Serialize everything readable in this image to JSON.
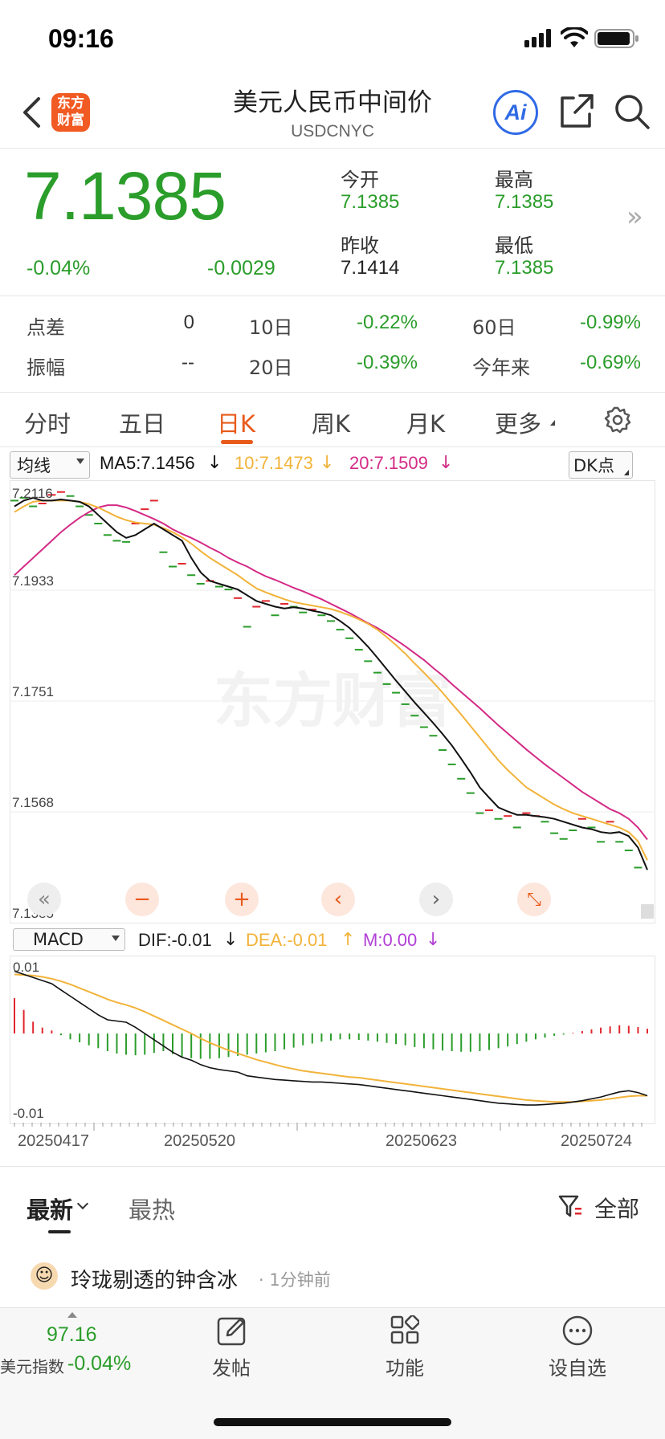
{
  "status_bar": {
    "time": "09:16"
  },
  "header": {
    "title": "美元人民币中间价",
    "subtitle": "USDCNYC",
    "logo_text_1": "东方",
    "logo_text_2": "财富",
    "ai_label": "Ai"
  },
  "quote": {
    "price": "7.1385",
    "change_pct": "-0.04%",
    "change_abs": "-0.0029",
    "open_label": "今开",
    "open_value": "7.1385",
    "high_label": "最高",
    "high_value": "7.1385",
    "prev_close_label": "昨收",
    "prev_close_value": "7.1414",
    "low_label": "最低",
    "low_value": "7.1385",
    "more_glyph": "»"
  },
  "stats": [
    {
      "label": "点差",
      "value": "0"
    },
    {
      "label": "10日",
      "value": "-0.22%"
    },
    {
      "label": "60日",
      "value": "-0.99%"
    },
    {
      "label": "振幅",
      "value": "--"
    },
    {
      "label": "20日",
      "value": "-0.39%"
    },
    {
      "label": "今年来",
      "value": "-0.69%"
    }
  ],
  "tabs": [
    "分时",
    "五日",
    "日K",
    "周K",
    "月K",
    "更多"
  ],
  "active_tab": "日K",
  "chart_toolbar": {
    "indicator_select": "均线",
    "ma5": "MA5:7.1456",
    "ma10": "10:7.1473",
    "ma20": "20:7.1509",
    "dk_button": "DK点",
    "macd_select": "MACD",
    "dif": "DIF:-0.01",
    "dea": "DEA:-0.01",
    "m": "M:0.00",
    "watermark": "东方财富"
  },
  "colors": {
    "up": "#e0262d",
    "down": "#2a9d2a",
    "ma5": "#111111",
    "ma10": "#f2b33a",
    "ma20": "#d42a86",
    "accent": "#e85a1a",
    "ai_blue": "#2f6ae6"
  },
  "chart_data": [
    {
      "type": "candlestick-line",
      "ylim": [
        7.1385,
        7.2116
      ],
      "y_ticks": [
        "7.2116",
        "7.1933",
        "7.1751",
        "7.1568",
        "7.1385"
      ],
      "x_ticks": [
        "20250417",
        "20250520",
        "20250623",
        "20250724"
      ],
      "candles": [
        [
          7.21,
          "d"
        ],
        [
          7.2105,
          "d"
        ],
        [
          7.209,
          "d"
        ],
        [
          7.2095,
          "u"
        ],
        [
          7.211,
          "u"
        ],
        [
          7.2115,
          "u"
        ],
        [
          7.2108,
          "d"
        ],
        [
          7.209,
          "d"
        ],
        [
          7.2075,
          "d"
        ],
        [
          7.206,
          "d"
        ],
        [
          7.204,
          "d"
        ],
        [
          7.203,
          "d"
        ],
        [
          7.2028,
          "d"
        ],
        [
          7.206,
          "u"
        ],
        [
          7.2085,
          "u"
        ],
        [
          7.21,
          "u"
        ],
        [
          7.201,
          "d"
        ],
        [
          7.1985,
          "d"
        ],
        [
          7.199,
          "u"
        ],
        [
          7.197,
          "d"
        ],
        [
          7.1955,
          "d"
        ],
        [
          7.196,
          "u"
        ],
        [
          7.195,
          "d"
        ],
        [
          7.1945,
          "d"
        ],
        [
          7.193,
          "u"
        ],
        [
          7.188,
          "d"
        ],
        [
          7.1915,
          "u"
        ],
        [
          7.1925,
          "u"
        ],
        [
          7.19,
          "d"
        ],
        [
          7.192,
          "u"
        ],
        [
          7.1915,
          "d"
        ],
        [
          7.1905,
          "d"
        ],
        [
          7.191,
          "u"
        ],
        [
          7.19,
          "d"
        ],
        [
          7.189,
          "d"
        ],
        [
          7.1875,
          "d"
        ],
        [
          7.186,
          "d"
        ],
        [
          7.184,
          "d"
        ],
        [
          7.182,
          "d"
        ],
        [
          7.18,
          "d"
        ],
        [
          7.178,
          "d"
        ],
        [
          7.1765,
          "d"
        ],
        [
          7.1745,
          "d"
        ],
        [
          7.1725,
          "d"
        ],
        [
          7.1705,
          "d"
        ],
        [
          7.169,
          "d"
        ],
        [
          7.1665,
          "d"
        ],
        [
          7.164,
          "d"
        ],
        [
          7.1615,
          "d"
        ],
        [
          7.159,
          "d"
        ],
        [
          7.1555,
          "d"
        ],
        [
          7.156,
          "u"
        ],
        [
          7.1545,
          "d"
        ],
        [
          7.155,
          "u"
        ],
        [
          7.153,
          "d"
        ],
        [
          7.1555,
          "u"
        ],
        [
          7.155,
          "u"
        ],
        [
          7.154,
          "d"
        ],
        [
          7.152,
          "d"
        ],
        [
          7.151,
          "d"
        ],
        [
          7.1525,
          "d"
        ],
        [
          7.1545,
          "u"
        ],
        [
          7.153,
          "d"
        ],
        [
          7.1505,
          "d"
        ],
        [
          7.154,
          "u"
        ],
        [
          7.1505,
          "d"
        ],
        [
          7.149,
          "d"
        ],
        [
          7.146,
          "d"
        ],
        [
          7.1385,
          "d"
        ]
      ],
      "ma5": [
        7.209,
        7.21,
        7.2105,
        7.21,
        7.21,
        7.2102,
        7.21,
        7.2098,
        7.209,
        7.2075,
        7.206,
        7.2045,
        7.2035,
        7.204,
        7.205,
        7.206,
        7.205,
        7.204,
        7.203,
        7.2,
        7.1975,
        7.196,
        7.1955,
        7.195,
        7.1945,
        7.1935,
        7.1925,
        7.192,
        7.1915,
        7.1912,
        7.1914,
        7.1912,
        7.1908,
        7.1905,
        7.19,
        7.189,
        7.1878,
        7.1862,
        7.1845,
        7.1826,
        7.1806,
        7.1786,
        7.1767,
        7.1748,
        7.173,
        7.1712,
        7.1693,
        7.1673,
        7.165,
        7.1626,
        7.16,
        7.1582,
        7.1565,
        7.1558,
        7.1552,
        7.1552,
        7.155,
        7.1548,
        7.1545,
        7.154,
        7.1535,
        7.153,
        7.1527,
        7.1522,
        7.152,
        7.1522,
        7.1515,
        7.1495,
        7.1456
      ],
      "ma10": [
        7.208,
        7.209,
        7.2098,
        7.21,
        7.21,
        7.21,
        7.21,
        7.2098,
        7.2094,
        7.2088,
        7.208,
        7.2072,
        7.2066,
        7.2062,
        7.206,
        7.2058,
        7.2052,
        7.2045,
        7.2036,
        7.2025,
        7.2012,
        7.2,
        7.199,
        7.198,
        7.197,
        7.1958,
        7.1947,
        7.194,
        7.1934,
        7.1928,
        7.1923,
        7.192,
        7.1917,
        7.1914,
        7.1911,
        7.1906,
        7.19,
        7.1893,
        7.1885,
        7.1875,
        7.1862,
        7.1848,
        7.1833,
        7.1816,
        7.18,
        7.1783,
        7.1765,
        7.1746,
        7.1727,
        7.1707,
        7.1687,
        7.1667,
        7.1647,
        7.163,
        7.1615,
        7.16,
        7.159,
        7.158,
        7.157,
        7.1562,
        7.1555,
        7.155,
        7.1545,
        7.154,
        7.1535,
        7.153,
        7.1522,
        7.1506,
        7.1473
      ],
      "ma20": [
        7.197,
        7.1985,
        7.2,
        7.2015,
        7.203,
        7.2045,
        7.2058,
        7.207,
        7.208,
        7.2088,
        7.2092,
        7.2092,
        7.2088,
        7.2082,
        7.2075,
        7.2068,
        7.206,
        7.205,
        7.2042,
        7.2035,
        7.2027,
        7.2018,
        7.201,
        7.2,
        7.1992,
        7.1985,
        7.1976,
        7.1968,
        7.1962,
        7.1955,
        7.1948,
        7.1942,
        7.1935,
        7.1928,
        7.192,
        7.1912,
        7.1904,
        7.1895,
        7.1886,
        7.1878,
        7.1868,
        7.1857,
        7.1846,
        7.1834,
        7.1822,
        7.1808,
        7.1795,
        7.178,
        7.1766,
        7.1752,
        7.1738,
        7.1723,
        7.1708,
        7.1694,
        7.168,
        7.1666,
        7.1653,
        7.164,
        7.1628,
        7.1616,
        7.1604,
        7.1592,
        7.1582,
        7.1572,
        7.1562,
        7.1555,
        7.1545,
        7.153,
        7.1509
      ]
    },
    {
      "type": "macd",
      "ylim": [
        -0.01,
        0.01
      ],
      "y_ticks": [
        "0.01",
        "-0.01"
      ],
      "histogram": [
        0.006,
        0.004,
        0.002,
        0.001,
        0.0005,
        -0.0003,
        -0.001,
        -0.0015,
        -0.002,
        -0.0025,
        -0.003,
        -0.0034,
        -0.0036,
        -0.0037,
        -0.0036,
        -0.0033,
        -0.003,
        -0.0035,
        -0.004,
        -0.0042,
        -0.0043,
        -0.0043,
        -0.0042,
        -0.004,
        -0.0038,
        -0.0036,
        -0.0034,
        -0.0032,
        -0.003,
        -0.0027,
        -0.0024,
        -0.002,
        -0.0017,
        -0.0014,
        -0.0012,
        -0.001,
        -0.001,
        -0.0011,
        -0.0012,
        -0.0014,
        -0.0016,
        -0.0018,
        -0.002,
        -0.0023,
        -0.0025,
        -0.0027,
        -0.0029,
        -0.003,
        -0.0031,
        -0.0031,
        -0.003,
        -0.0028,
        -0.0025,
        -0.0022,
        -0.0018,
        -0.0014,
        -0.001,
        -0.0007,
        -0.0004,
        -0.0002,
        0.0001,
        0.0004,
        0.0007,
        0.001,
        0.0012,
        0.0014,
        0.0013,
        0.0011,
        0.0008
      ],
      "dif": [
        0.01,
        0.0095,
        0.009,
        0.0085,
        0.008,
        0.007,
        0.006,
        0.005,
        0.004,
        0.003,
        0.0022,
        0.002,
        0.0018,
        0.001,
        0.0,
        -0.001,
        -0.002,
        -0.003,
        -0.0038,
        -0.0043,
        -0.005,
        -0.0055,
        -0.0058,
        -0.006,
        -0.0062,
        -0.0068,
        -0.007,
        -0.0072,
        -0.0074,
        -0.0075,
        -0.0076,
        -0.0077,
        -0.0078,
        -0.0078,
        -0.0079,
        -0.008,
        -0.0081,
        -0.0082,
        -0.0084,
        -0.0086,
        -0.0088,
        -0.009,
        -0.0092,
        -0.0094,
        -0.0096,
        -0.0098,
        -0.01,
        -0.0102,
        -0.0104,
        -0.0106,
        -0.0108,
        -0.011,
        -0.0112,
        -0.0113,
        -0.0114,
        -0.0115,
        -0.0115,
        -0.0114,
        -0.0113,
        -0.0112,
        -0.011,
        -0.0108,
        -0.0105,
        -0.0102,
        -0.0098,
        -0.0094,
        -0.0092,
        -0.0095,
        -0.01
      ],
      "dea": [
        0.0095,
        0.0094,
        0.0093,
        0.0091,
        0.0088,
        0.0084,
        0.0079,
        0.0073,
        0.0067,
        0.0061,
        0.0055,
        0.005,
        0.0046,
        0.0041,
        0.0035,
        0.0028,
        0.0021,
        0.0014,
        0.0007,
        0.0,
        -0.0008,
        -0.0015,
        -0.0021,
        -0.0027,
        -0.0032,
        -0.0037,
        -0.0042,
        -0.0046,
        -0.005,
        -0.0054,
        -0.0057,
        -0.006,
        -0.0062,
        -0.0064,
        -0.0066,
        -0.0068,
        -0.007,
        -0.0071,
        -0.0073,
        -0.0075,
        -0.0077,
        -0.0079,
        -0.0081,
        -0.0083,
        -0.0085,
        -0.0087,
        -0.0089,
        -0.0091,
        -0.0093,
        -0.0095,
        -0.0097,
        -0.0099,
        -0.0101,
        -0.0103,
        -0.0105,
        -0.0107,
        -0.0108,
        -0.0109,
        -0.011,
        -0.011,
        -0.011,
        -0.0109,
        -0.0108,
        -0.0107,
        -0.0105,
        -0.0103,
        -0.0101,
        -0.01,
        -0.01
      ]
    }
  ],
  "comments": {
    "tab_latest": "最新",
    "tab_hot": "最热",
    "filter_label": "全部",
    "first_user": "玲珑剔透的钟含冰",
    "first_time": "· 1分钟前"
  },
  "bottom_bar": {
    "index_value": "97.16",
    "index_name": "美元指数",
    "index_change": "-0.04%",
    "post_label": "发帖",
    "func_label": "功能",
    "watch_label": "设自选"
  }
}
